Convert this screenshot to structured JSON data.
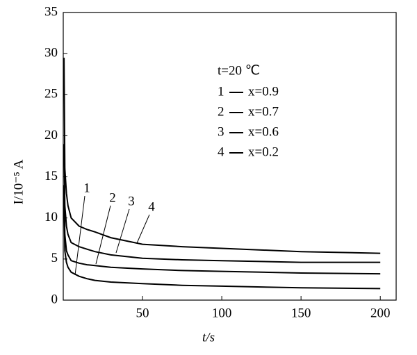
{
  "chart_data": {
    "type": "line",
    "x_label": "t/s",
    "y_label": "I/10⁻⁵ A",
    "annotation": "t=20 ℃",
    "x": [
      0.5,
      1,
      2,
      3,
      5,
      10,
      15,
      20,
      30,
      50,
      75,
      100,
      150,
      200
    ],
    "series": [
      {
        "label": "1",
        "name": "x=0.9",
        "color": "#000000",
        "values": [
          12,
          6,
          4.6,
          4,
          3.4,
          2.9,
          2.6,
          2.4,
          2.2,
          2,
          1.8,
          1.7,
          1.5,
          1.4
        ]
      },
      {
        "label": "2",
        "name": "x=0.7",
        "color": "#000000",
        "values": [
          14,
          8,
          6,
          5.5,
          4.8,
          4.5,
          4.3,
          4.2,
          4,
          3.8,
          3.6,
          3.5,
          3.3,
          3.2
        ]
      },
      {
        "label": "3",
        "name": "x=0.6",
        "color": "#000000",
        "values": [
          19,
          11.5,
          9,
          8,
          7,
          6.5,
          6.2,
          5.9,
          5.5,
          5.1,
          4.9,
          4.8,
          4.6,
          4.6
        ]
      },
      {
        "label": "4",
        "name": "x=0.2",
        "color": "#000000",
        "values": [
          29.5,
          16,
          13,
          11.5,
          10,
          9,
          8.6,
          8.3,
          7.6,
          6.8,
          6.5,
          6.3,
          5.9,
          5.7
        ]
      }
    ],
    "xlim": [
      0,
      210
    ],
    "ylim": [
      0,
      35
    ],
    "xticks": [
      50,
      100,
      150,
      200
    ],
    "yticks": [
      0,
      5,
      10,
      15,
      20,
      25,
      30,
      35
    ]
  }
}
